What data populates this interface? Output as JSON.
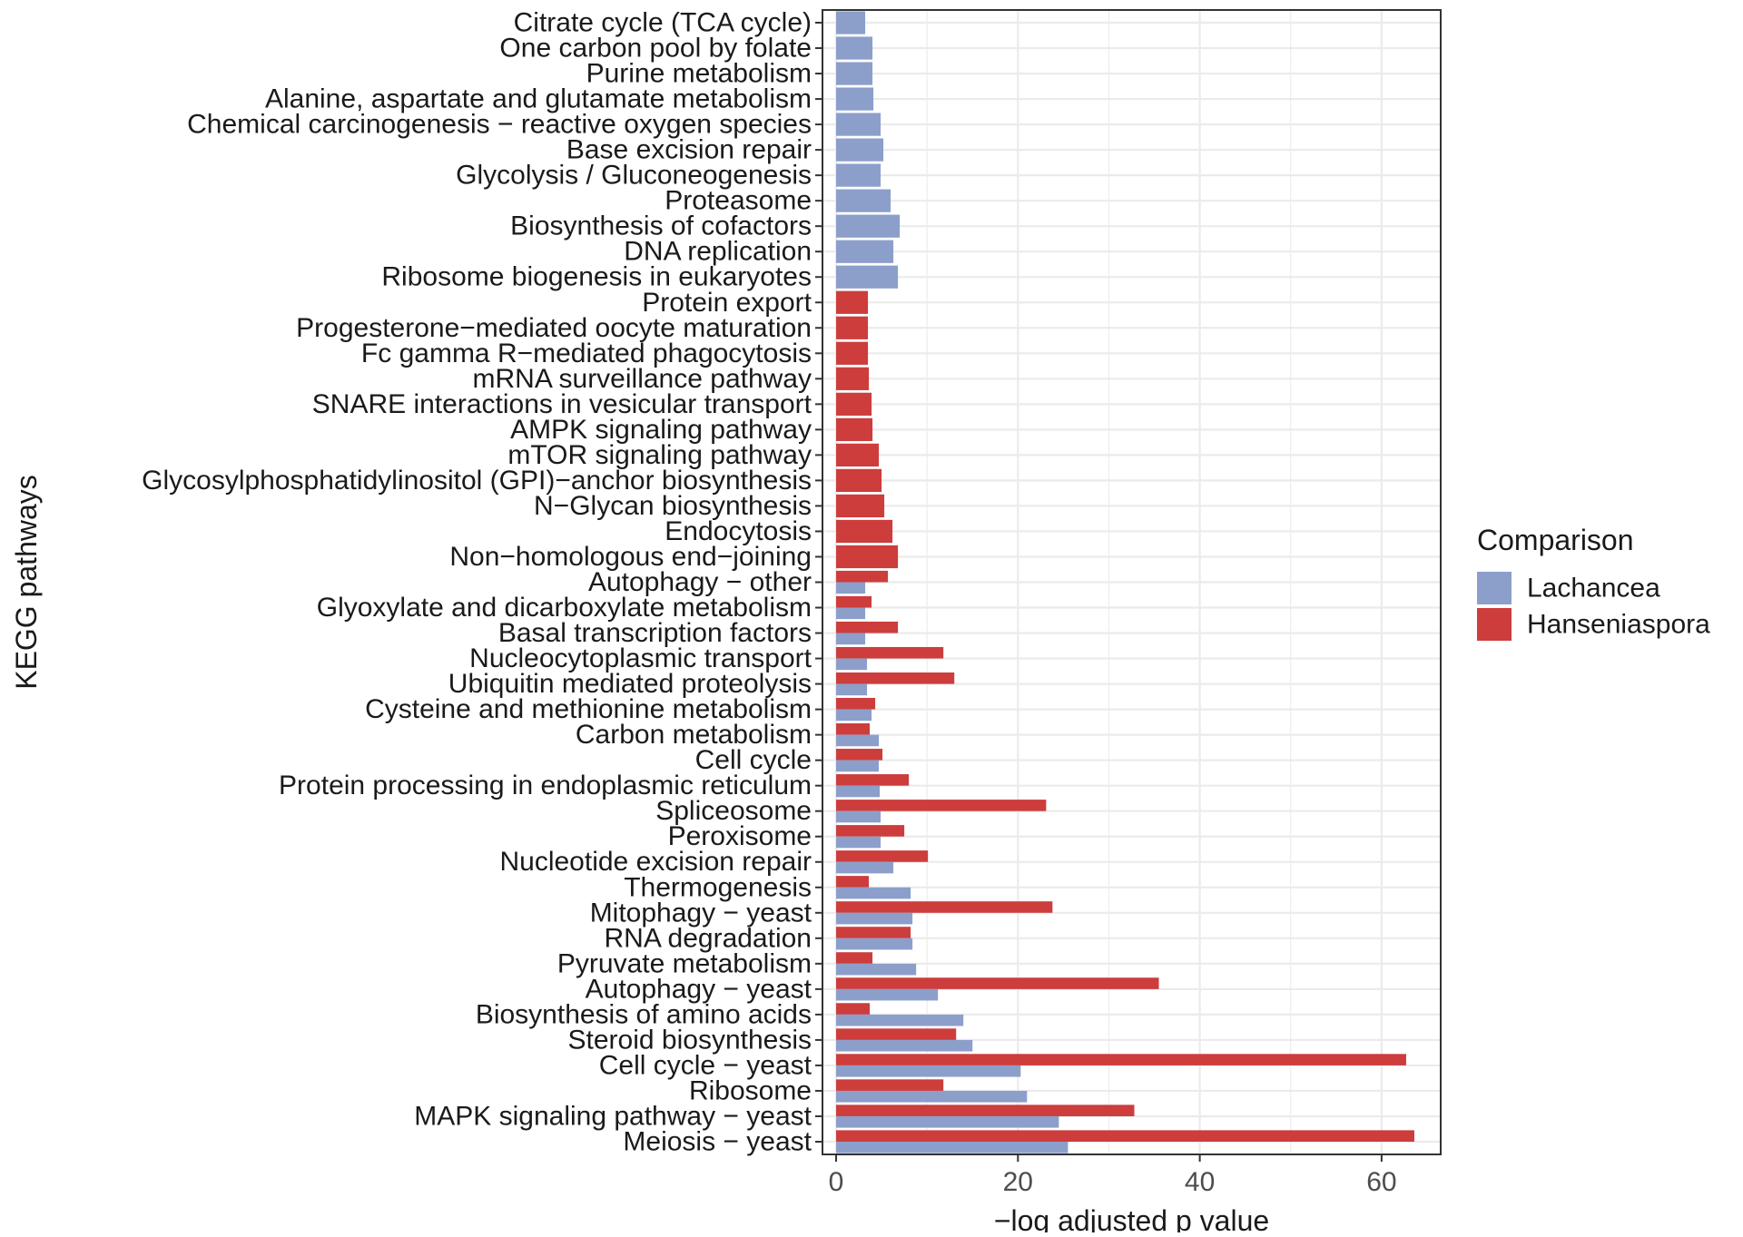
{
  "chart_data": {
    "type": "bar",
    "orientation": "horizontal",
    "title": "",
    "xlabel": "−log adjusted p value",
    "ylabel": "KEGG pathways",
    "xlim": [
      -1.5,
      66.5
    ],
    "xticks": [
      "0",
      "20",
      "40",
      "60"
    ],
    "xtick_values": [
      0,
      20,
      40,
      60
    ],
    "grid": true,
    "legend": {
      "title": "Comparison",
      "placement": "right"
    },
    "categories": [
      "Citrate cycle (TCA cycle)",
      "One carbon pool by folate",
      "Purine metabolism",
      "Alanine, aspartate and glutamate metabolism",
      "Chemical carcinogenesis − reactive oxygen species",
      "Base excision repair",
      "Glycolysis / Gluconeogenesis",
      "Proteasome",
      "Biosynthesis of cofactors",
      "DNA replication",
      "Ribosome biogenesis in eukaryotes",
      "Protein export",
      "Progesterone−mediated oocyte maturation",
      "Fc gamma R−mediated phagocytosis",
      "mRNA surveillance pathway",
      "SNARE interactions in vesicular transport",
      "AMPK signaling pathway",
      "mTOR signaling pathway",
      "Glycosylphosphatidylinositol (GPI)−anchor biosynthesis",
      "N−Glycan biosynthesis",
      "Endocytosis",
      "Non−homologous end−joining",
      "Autophagy − other",
      "Glyoxylate and dicarboxylate metabolism",
      "Basal transcription factors",
      "Nucleocytoplasmic transport",
      "Ubiquitin mediated proteolysis",
      "Cysteine and methionine metabolism",
      "Carbon metabolism",
      "Cell cycle",
      "Protein processing in endoplasmic reticulum",
      "Spliceosome",
      "Peroxisome",
      "Nucleotide excision repair",
      "Thermogenesis",
      "Mitophagy − yeast",
      "RNA degradation",
      "Pyruvate metabolism",
      "Autophagy − yeast",
      "Biosynthesis of amino acids",
      "Steroid biosynthesis",
      "Cell cycle − yeast",
      "Ribosome",
      "MAPK signaling pathway − yeast",
      "Meiosis − yeast"
    ],
    "series": [
      {
        "name": "Lachancea",
        "color": "#8c9fcb",
        "values": [
          3.2,
          4.0,
          4.0,
          4.1,
          4.9,
          5.2,
          4.9,
          6.0,
          7.0,
          6.3,
          6.8,
          null,
          null,
          null,
          null,
          null,
          null,
          null,
          null,
          null,
          null,
          null,
          3.2,
          3.2,
          3.2,
          3.4,
          3.4,
          3.9,
          4.7,
          4.7,
          4.8,
          4.9,
          4.9,
          6.3,
          8.2,
          8.4,
          8.4,
          8.8,
          11.2,
          14.0,
          15.0,
          20.3,
          21.0,
          24.5,
          25.5
        ]
      },
      {
        "name": "Hanseniaspora",
        "color": "#cc3d3c",
        "values": [
          null,
          null,
          null,
          null,
          null,
          null,
          null,
          null,
          null,
          null,
          null,
          3.5,
          3.5,
          3.5,
          3.6,
          3.9,
          4.0,
          4.7,
          5.0,
          5.3,
          6.2,
          6.8,
          5.7,
          3.9,
          6.8,
          11.8,
          13.0,
          4.3,
          3.7,
          5.1,
          8.0,
          23.1,
          7.5,
          10.1,
          3.6,
          23.8,
          8.2,
          4.0,
          35.5,
          3.7,
          13.2,
          62.7,
          11.8,
          32.8,
          63.6
        ]
      }
    ]
  }
}
